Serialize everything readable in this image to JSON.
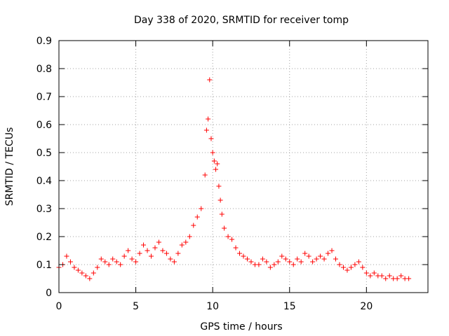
{
  "chart_data": {
    "type": "scatter",
    "title": "Day 338 of 2020, SRMTID for receiver tomp",
    "xlabel": "GPS time / hours",
    "ylabel": "SRMTID / TECUs",
    "xlim": [
      0,
      24
    ],
    "ylim": [
      0,
      0.9
    ],
    "x_ticks": [
      0,
      5,
      10,
      15,
      20
    ],
    "x_tick_labels": [
      "0",
      "5",
      "10",
      "15",
      "20"
    ],
    "y_ticks": [
      0,
      0.1,
      0.2,
      0.3,
      0.4,
      0.5,
      0.6,
      0.7,
      0.8,
      0.9
    ],
    "y_tick_labels": [
      "0",
      "0.1",
      "0.2",
      "0.3",
      "0.4",
      "0.5",
      "0.6",
      "0.7",
      "0.8",
      "0.9"
    ],
    "grid": true,
    "marker": "plus",
    "color": "#ff0000",
    "series": [
      {
        "name": "SRMTID",
        "x": [
          0.0,
          0.25,
          0.5,
          0.75,
          1.0,
          1.25,
          1.5,
          1.75,
          2.0,
          2.25,
          2.5,
          2.75,
          3.0,
          3.25,
          3.5,
          3.75,
          4.0,
          4.25,
          4.5,
          4.75,
          5.0,
          5.25,
          5.5,
          5.75,
          6.0,
          6.25,
          6.5,
          6.75,
          7.0,
          7.25,
          7.5,
          7.75,
          8.0,
          8.25,
          8.5,
          8.75,
          9.0,
          9.25,
          9.5,
          9.6,
          9.7,
          9.8,
          9.9,
          10.0,
          10.1,
          10.2,
          10.3,
          10.4,
          10.5,
          10.6,
          10.75,
          11.0,
          11.25,
          11.5,
          11.75,
          12.0,
          12.25,
          12.5,
          12.75,
          13.0,
          13.25,
          13.5,
          13.75,
          14.0,
          14.25,
          14.5,
          14.75,
          15.0,
          15.25,
          15.5,
          15.75,
          16.0,
          16.25,
          16.5,
          16.75,
          17.0,
          17.25,
          17.5,
          17.75,
          18.0,
          18.25,
          18.5,
          18.75,
          19.0,
          19.25,
          19.5,
          19.75,
          20.0,
          20.25,
          20.5,
          20.75,
          21.0,
          21.25,
          21.5,
          21.75,
          22.0,
          22.25,
          22.5,
          22.75
        ],
        "y": [
          0.09,
          0.1,
          0.13,
          0.11,
          0.09,
          0.08,
          0.07,
          0.06,
          0.05,
          0.07,
          0.09,
          0.12,
          0.11,
          0.1,
          0.12,
          0.11,
          0.1,
          0.13,
          0.15,
          0.12,
          0.11,
          0.14,
          0.17,
          0.15,
          0.13,
          0.16,
          0.18,
          0.15,
          0.14,
          0.12,
          0.11,
          0.14,
          0.17,
          0.18,
          0.2,
          0.24,
          0.27,
          0.3,
          0.42,
          0.58,
          0.62,
          0.76,
          0.55,
          0.5,
          0.47,
          0.44,
          0.46,
          0.38,
          0.33,
          0.28,
          0.23,
          0.2,
          0.19,
          0.16,
          0.14,
          0.13,
          0.12,
          0.11,
          0.1,
          0.1,
          0.12,
          0.11,
          0.09,
          0.1,
          0.11,
          0.13,
          0.12,
          0.11,
          0.1,
          0.12,
          0.11,
          0.14,
          0.13,
          0.11,
          0.12,
          0.13,
          0.12,
          0.14,
          0.15,
          0.12,
          0.1,
          0.09,
          0.08,
          0.09,
          0.1,
          0.11,
          0.09,
          0.07,
          0.06,
          0.07,
          0.06,
          0.06,
          0.05,
          0.06,
          0.05,
          0.05,
          0.06,
          0.05,
          0.05
        ]
      }
    ]
  }
}
